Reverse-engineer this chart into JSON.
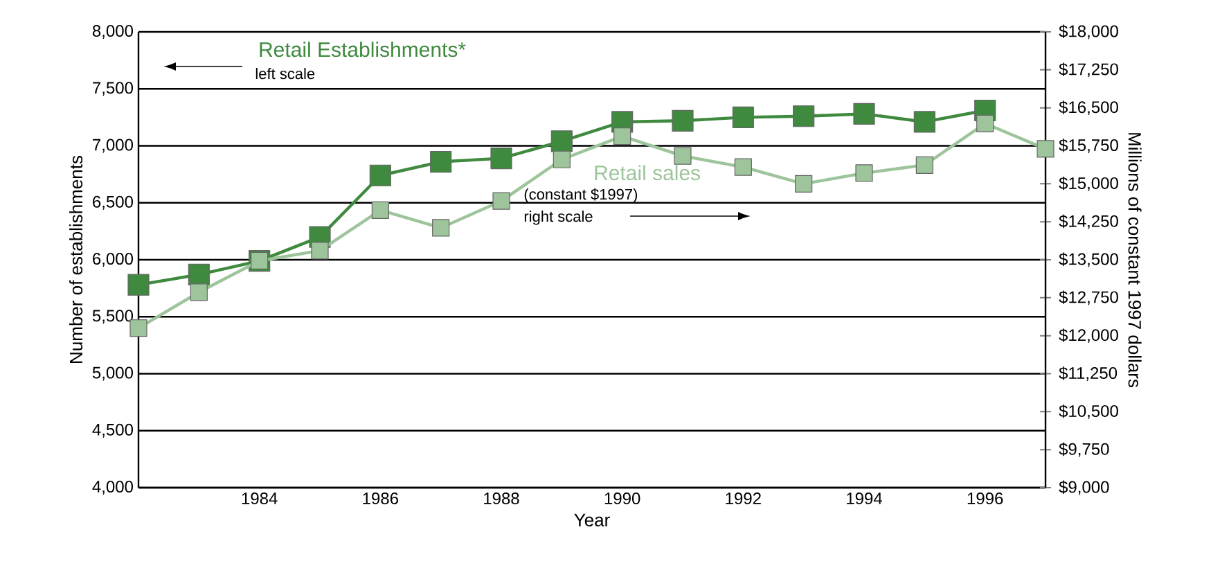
{
  "chart_data": {
    "type": "line",
    "xlabel": "Year",
    "ylabel": "Number of establishments",
    "y2label": "Millions of constant 1997 dollars",
    "x": [
      1982,
      1983,
      1984,
      1985,
      1986,
      1987,
      1988,
      1989,
      1990,
      1991,
      1992,
      1993,
      1994,
      1995,
      1996,
      1997
    ],
    "series": [
      {
        "name": "Retail Establishments*",
        "color": "#3f8a3f",
        "axis": "y",
        "values": [
          5780,
          5870,
          5990,
          6200,
          6740,
          6860,
          6890,
          7040,
          7210,
          7220,
          7250,
          7260,
          7280,
          7210,
          7310,
          null
        ]
      },
      {
        "name": "Retail sales",
        "color": "#9dc49a",
        "axis": "y2",
        "values": [
          12150,
          12860,
          13480,
          13680,
          14480,
          14130,
          14660,
          15480,
          15940,
          15550,
          15330,
          15000,
          15210,
          15370,
          16190,
          15690
        ]
      }
    ],
    "xlim": [
      1982,
      1997
    ],
    "xticks": [
      1984,
      1986,
      1988,
      1990,
      1992,
      1994,
      1996
    ],
    "ylim": [
      4000,
      8000
    ],
    "yticks": [
      {
        "value": 4000,
        "label": "4,000"
      },
      {
        "value": 4500,
        "label": "4,500"
      },
      {
        "value": 5000,
        "label": "5,000"
      },
      {
        "value": 5500,
        "label": "5,500"
      },
      {
        "value": 6000,
        "label": "6,000"
      },
      {
        "value": 6500,
        "label": "6,500"
      },
      {
        "value": 7000,
        "label": "7,000"
      },
      {
        "value": 7500,
        "label": "7,500"
      },
      {
        "value": 8000,
        "label": "8,000"
      }
    ],
    "y2lim": [
      9000,
      18000
    ],
    "y2ticks": [
      {
        "value": 9000,
        "label": "$9,000"
      },
      {
        "value": 9750,
        "label": "$9,750"
      },
      {
        "value": 10500,
        "label": "$10,500"
      },
      {
        "value": 11250,
        "label": "$11,250"
      },
      {
        "value": 12000,
        "label": "$12,000"
      },
      {
        "value": 12750,
        "label": "$12,750"
      },
      {
        "value": 13500,
        "label": "$13,500"
      },
      {
        "value": 14250,
        "label": "$14,250"
      },
      {
        "value": 15000,
        "label": "$15,000"
      },
      {
        "value": 15750,
        "label": "$15,750"
      },
      {
        "value": 16500,
        "label": "$16,500"
      },
      {
        "value": 17250,
        "label": "$17,250"
      },
      {
        "value": 18000,
        "label": "$18,000"
      }
    ],
    "grid": "y",
    "marker": "square",
    "line_style": "solid",
    "annotations": [
      "left scale",
      "(constant $1997)",
      "right scale"
    ]
  }
}
